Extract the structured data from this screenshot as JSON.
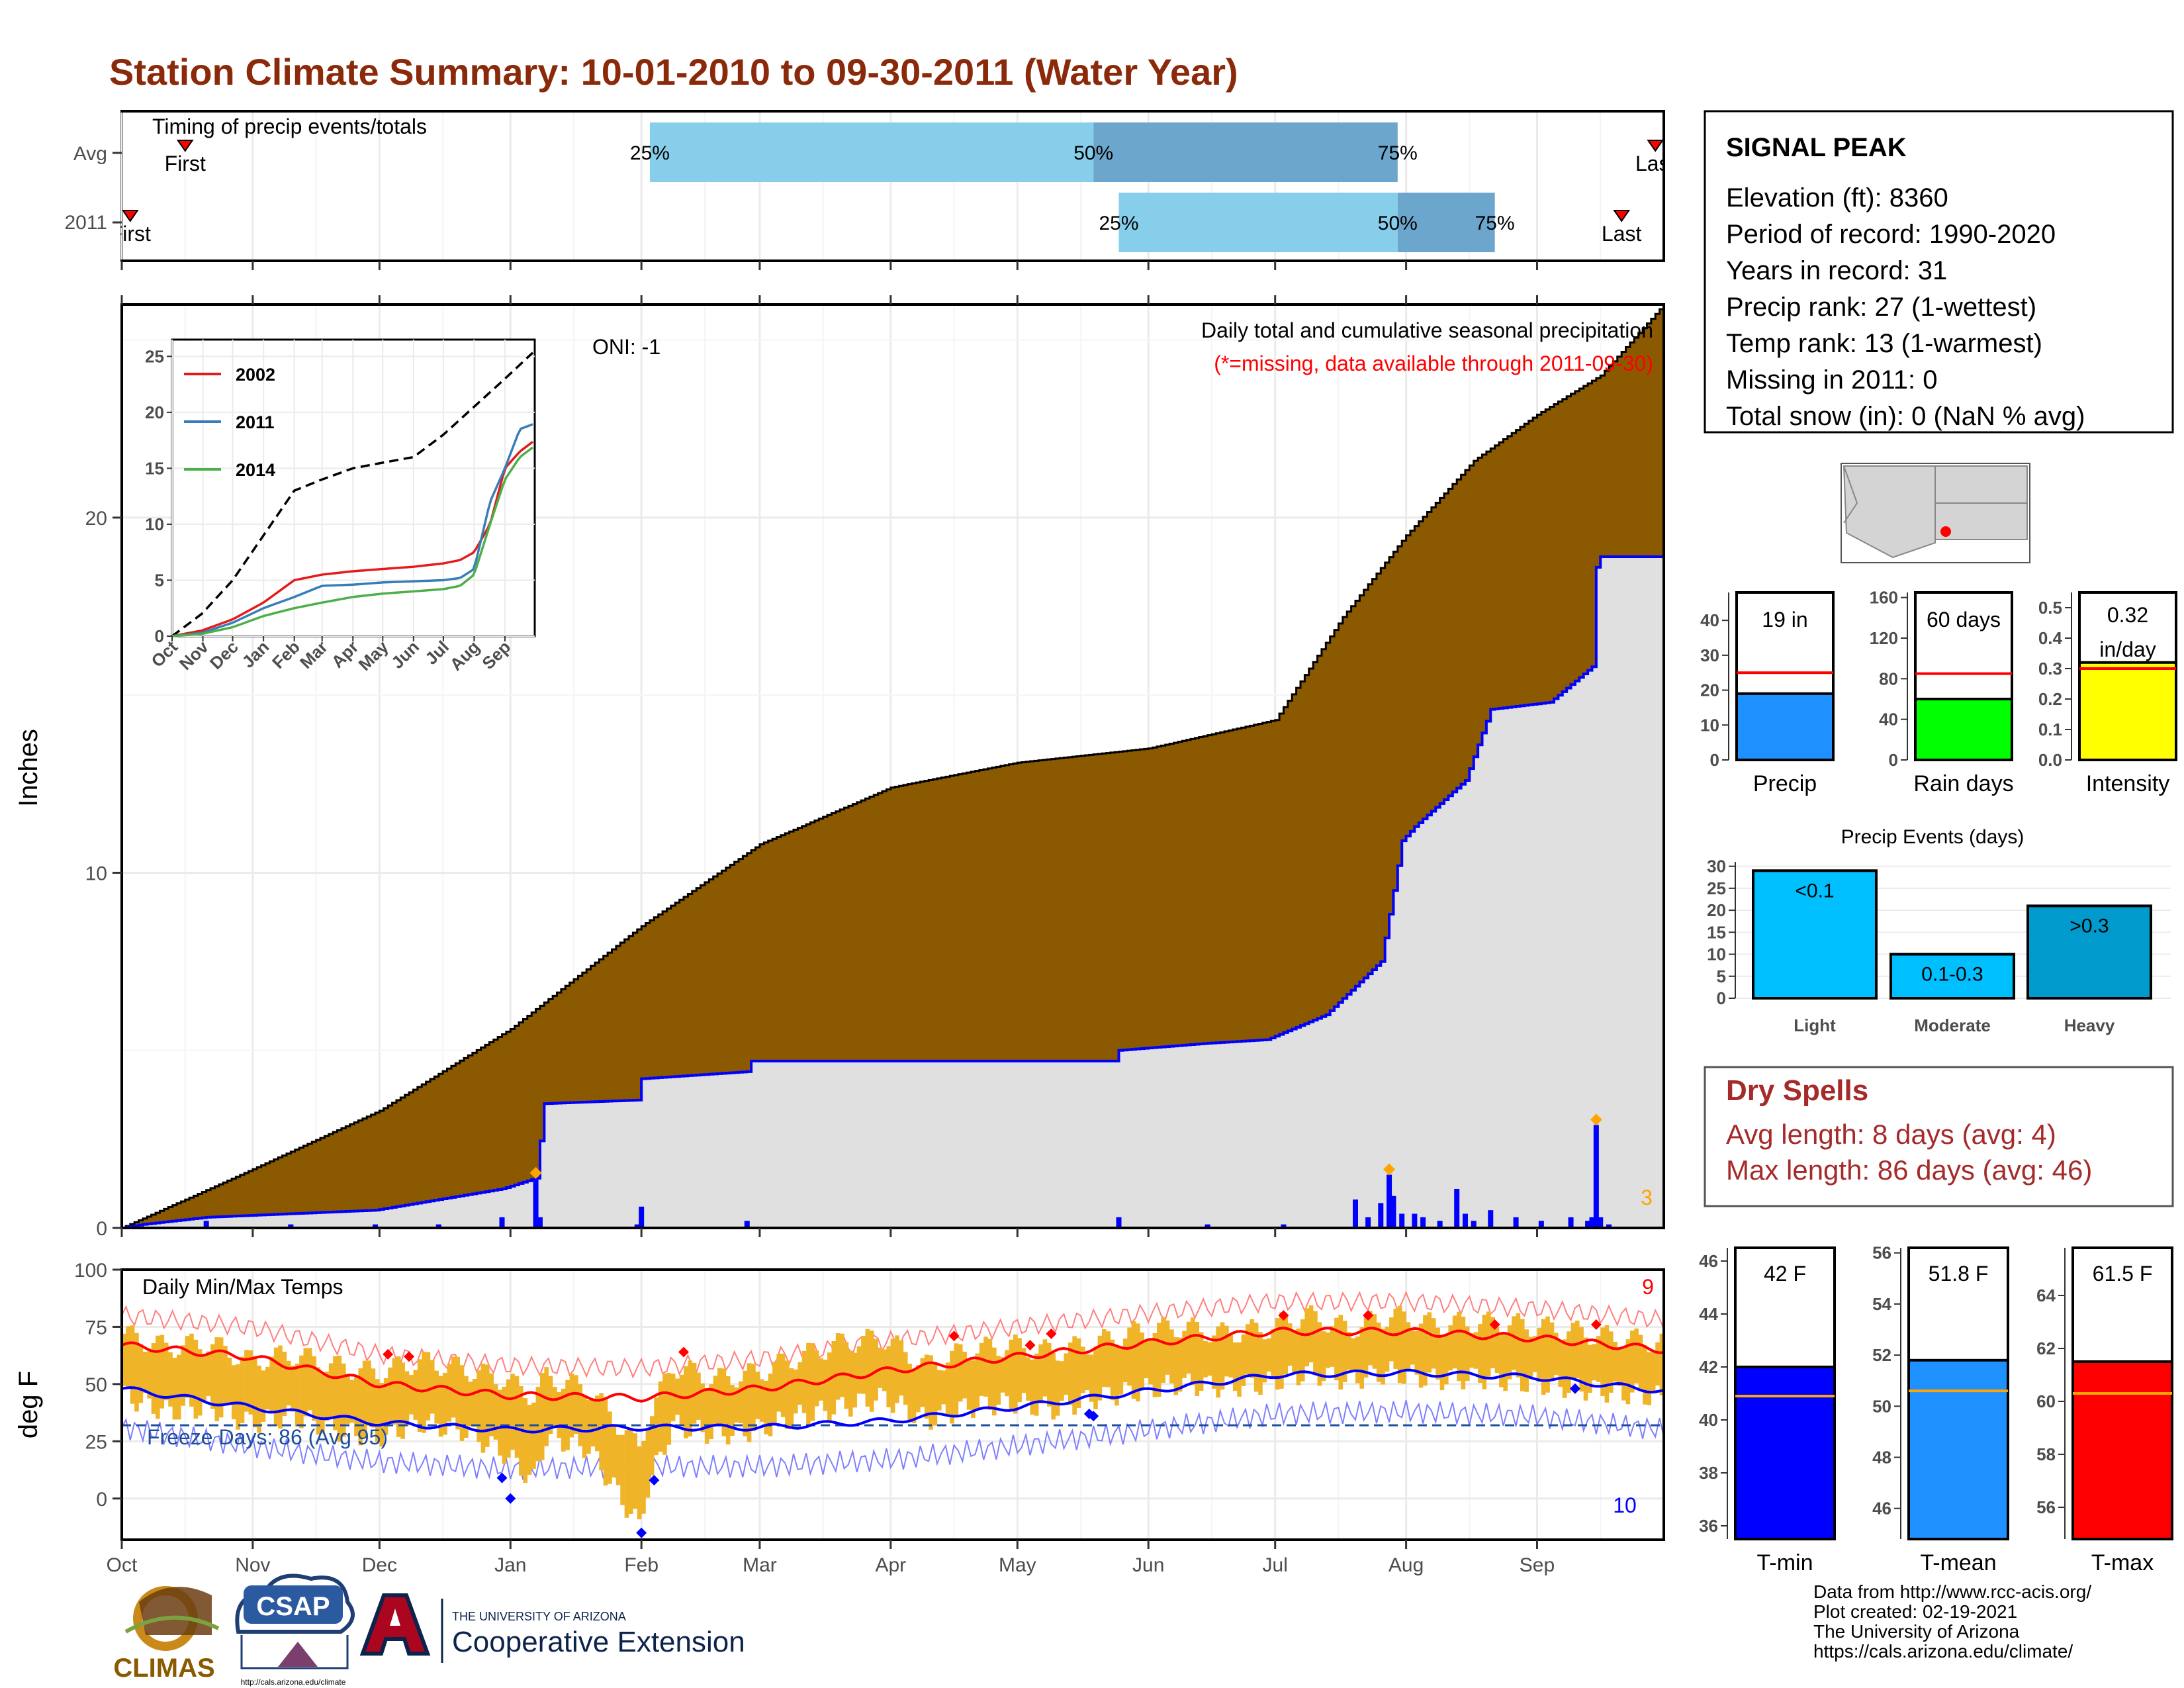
{
  "title": "Station Climate Summary: 10-01-2010 to 09-30-2011 (Water Year)",
  "timing_panel": {
    "label": "Timing of precip events/totals",
    "rows": [
      {
        "name": "Avg",
        "first_label": "First",
        "last_label": "Last",
        "p25": "25%",
        "p50": "50%",
        "p75": "75%",
        "first_day": 15,
        "last_day": 363,
        "p25_day": 125,
        "p50_day": 230,
        "p75_day": 302
      },
      {
        "name": "2011",
        "first_label": "First",
        "last_label": "Last",
        "p25": "25%",
        "p50": "50%",
        "p75": "75%",
        "first_day": 2,
        "last_day": 355,
        "p25_day": 236,
        "p50_day": 302,
        "p75_day": 325
      }
    ]
  },
  "precip_panel": {
    "ylabel": "Inches",
    "annotation_title": "Daily total and cumulative seasonal precipitation",
    "annotation_missing": "(*=missing, data available through 2011-09-30)",
    "oni": "ONI: -1",
    "count_label": "3",
    "yticks": [
      "0",
      "10",
      "20"
    ]
  },
  "inset": {
    "yticks": [
      "0",
      "5",
      "10",
      "15",
      "20",
      "25"
    ],
    "xticks": [
      "Oct",
      "Nov",
      "Dec",
      "Jan",
      "Feb",
      "Mar",
      "Apr",
      "May",
      "Jun",
      "Jul",
      "Aug",
      "Sep"
    ],
    "legend": [
      {
        "name": "2002",
        "color": "#e41a1c"
      },
      {
        "name": "2011",
        "color": "#377eb8"
      },
      {
        "name": "2014",
        "color": "#4daf4a"
      }
    ]
  },
  "temp_panel": {
    "ylabel": "deg F",
    "label": "Daily Min/Max Temps",
    "freeze_label": "Freeze Days: 86 (Avg 95)",
    "count_max": "9",
    "count_min": "10",
    "yticks": [
      "0",
      "25",
      "50",
      "75",
      "100"
    ]
  },
  "months": [
    "Oct",
    "Nov",
    "Dec",
    "Jan",
    "Feb",
    "Mar",
    "Apr",
    "May",
    "Jun",
    "Jul",
    "Aug",
    "Sep"
  ],
  "station": {
    "name": "SIGNAL PEAK",
    "lines": [
      "Elevation (ft): 8360",
      "Period of record: 1990-2020",
      "Years in record: 31",
      "Precip rank: 27 (1-wettest)",
      "Temp rank: 13 (1-warmest)",
      "Missing in 2011: 0",
      "Total snow (in): 0 (NaN % avg)"
    ]
  },
  "summary_bars": [
    {
      "name": "Precip",
      "label": "19 in",
      "color": "#1e90ff",
      "value": 19,
      "avg": 25,
      "yticks": [
        "0",
        "10",
        "20",
        "30",
        "40"
      ],
      "ymax": 48
    },
    {
      "name": "Rain days",
      "label": "60 days",
      "color": "#00ff00",
      "value": 60,
      "avg": 85,
      "yticks": [
        "0",
        "40",
        "80",
        "120",
        "160"
      ],
      "ymax": 165
    },
    {
      "name": "Intensity",
      "label_lines": [
        "0.32",
        "in/day"
      ],
      "color": "#ffff00",
      "value": 0.32,
      "avg": 0.3,
      "yticks": [
        "0.0",
        "0.1",
        "0.2",
        "0.3",
        "0.4",
        "0.5"
      ],
      "ymax": 0.55
    }
  ],
  "precip_events": {
    "title": "Precip Events (days)",
    "yticks": [
      "0",
      "5",
      "10",
      "15",
      "20",
      "25",
      "30"
    ],
    "bars": [
      {
        "name": "Light",
        "label": "<0.1",
        "value": 29,
        "color": "#00bfff"
      },
      {
        "name": "Moderate",
        "label": "0.1-0.3",
        "value": 10,
        "color": "#00bfff"
      },
      {
        "name": "Heavy",
        "label": ">0.3",
        "value": 21,
        "color": "#009acd"
      }
    ]
  },
  "dry_spells": {
    "title": "Dry Spells",
    "avg_line": "Avg length: 8 days (avg: 4)",
    "max_line": "Max length: 86 days (avg: 46)"
  },
  "temp_bars": [
    {
      "name": "T-min",
      "label": "42 F",
      "value": 42,
      "avg": 40.9,
      "color": "#0000ff",
      "yticks": [
        "36",
        "38",
        "40",
        "42",
        "44",
        "46"
      ],
      "ymin": 35.5,
      "ymax": 46.5
    },
    {
      "name": "T-mean",
      "label": "51.8 F",
      "value": 51.8,
      "avg": 50.6,
      "color": "#1e90ff",
      "yticks": [
        "46",
        "48",
        "50",
        "52",
        "54",
        "56"
      ],
      "ymin": 44.8,
      "ymax": 56.2
    },
    {
      "name": "T-max",
      "label": "61.5 F",
      "value": 61.5,
      "avg": 60.3,
      "color": "#ff0000",
      "yticks": [
        "56",
        "58",
        "60",
        "62",
        "64"
      ],
      "ymin": 54.8,
      "ymax": 65.8
    }
  ],
  "footer": {
    "lines": [
      "Data from http://www.rcc-acis.org/",
      "Plot created: 02-19-2021",
      "The University of Arizona",
      "https://cals.arizona.edu/climate/"
    ]
  },
  "logos": {
    "climas": "CLIMAS",
    "csap": "CSAP",
    "csap_url": "http://cals.arizona.edu/climate",
    "ua_top": "THE UNIVERSITY OF ARIZONA",
    "ua_bottom": "Cooperative Extension"
  },
  "chart_data": {
    "type": "area",
    "x_range_days": [
      0,
      365
    ],
    "cumulative_avg_inches": {
      "days": [
        0,
        30,
        61,
        92,
        123,
        151,
        182,
        212,
        243,
        273,
        289,
        304,
        320,
        335,
        350,
        365
      ],
      "values": [
        0,
        1.6,
        3.3,
        5.6,
        8.5,
        10.8,
        12.4,
        13.1,
        13.5,
        14.3,
        17.2,
        19.5,
        21.6,
        22.9,
        24.0,
        26.0
      ]
    },
    "cumulative_2011_inches": {
      "days": [
        0,
        5,
        20,
        40,
        60,
        75,
        90,
        98,
        100,
        122,
        123,
        148,
        149,
        235,
        236,
        257,
        271,
        285,
        298,
        301,
        303,
        306,
        318,
        324,
        338,
        348,
        349,
        350,
        365
      ],
      "values": [
        0,
        0.1,
        0.3,
        0.4,
        0.5,
        0.8,
        1.1,
        1.4,
        3.5,
        3.6,
        4.2,
        4.4,
        4.7,
        4.7,
        5.0,
        5.2,
        5.3,
        6.0,
        7.5,
        9.5,
        10.9,
        11.3,
        12.6,
        14.6,
        14.8,
        15.8,
        18.6,
        18.9,
        18.9
      ]
    },
    "daily_precip_2011": {
      "days": [
        20,
        40,
        60,
        75,
        90,
        98,
        99,
        122,
        123,
        148,
        236,
        257,
        275,
        292,
        295,
        298,
        300,
        301,
        303,
        306,
        308,
        312,
        316,
        318,
        320,
        324,
        330,
        336,
        343,
        347,
        348,
        349,
        350,
        352
      ],
      "values": [
        0.2,
        0.1,
        0.1,
        0.1,
        0.3,
        1.4,
        0.3,
        0.1,
        0.6,
        0.2,
        0.3,
        0.1,
        0.1,
        0.8,
        0.3,
        0.7,
        1.5,
        0.9,
        0.4,
        0.4,
        0.3,
        0.2,
        1.1,
        0.4,
        0.2,
        0.5,
        0.3,
        0.2,
        0.3,
        0.2,
        0.3,
        2.9,
        0.3,
        0.1
      ]
    },
    "daily_temp_2011": {
      "days": [
        0,
        10,
        20,
        30,
        40,
        50,
        60,
        70,
        80,
        90,
        97,
        100,
        110,
        122,
        124,
        130,
        140,
        150,
        160,
        170,
        180,
        190,
        200,
        210,
        220,
        230,
        240,
        250,
        260,
        270,
        280,
        290,
        300,
        310,
        320,
        330,
        340,
        350,
        360,
        365
      ],
      "tmax": [
        72,
        66,
        68,
        60,
        63,
        58,
        55,
        60,
        57,
        52,
        45,
        53,
        48,
        22,
        35,
        58,
        52,
        55,
        62,
        68,
        70,
        58,
        65,
        67,
        64,
        68,
        73,
        75,
        72,
        74,
        80,
        74,
        80,
        76,
        77,
        76,
        74,
        71,
        69,
        68
      ],
      "tmin": [
        45,
        38,
        40,
        33,
        36,
        30,
        27,
        33,
        30,
        20,
        8,
        27,
        22,
        -12,
        5,
        32,
        28,
        30,
        36,
        40,
        44,
        34,
        40,
        42,
        39,
        44,
        47,
        50,
        49,
        50,
        55,
        52,
        55,
        52,
        53,
        51,
        49,
        47,
        45,
        44
      ]
    },
    "temp_avg_max": {
      "days": [
        0,
        30,
        61,
        92,
        123,
        151,
        182,
        212,
        243,
        273,
        304,
        335,
        365
      ],
      "values": [
        67,
        62,
        50,
        45,
        44,
        48,
        56,
        62,
        68,
        73,
        73,
        70,
        65
      ]
    },
    "temp_avg_min": {
      "days": [
        0,
        30,
        61,
        92,
        123,
        151,
        182,
        212,
        243,
        273,
        304,
        335,
        365
      ],
      "values": [
        48,
        40,
        33,
        30,
        31,
        31,
        34,
        40,
        47,
        54,
        55,
        53,
        47
      ]
    },
    "inset_series": [
      {
        "name": "avg",
        "days": [
          0,
          30,
          61,
          92,
          123,
          151,
          182,
          212,
          243,
          273,
          304,
          335,
          365
        ],
        "values": [
          0,
          2,
          5,
          9,
          13,
          14,
          15,
          15.5,
          16,
          18,
          20.5,
          23,
          25.5
        ]
      },
      {
        "name": "2002",
        "days": [
          0,
          30,
          61,
          92,
          123,
          151,
          182,
          212,
          243,
          273,
          290,
          304,
          320,
          335,
          350,
          365
        ],
        "values": [
          0,
          0.5,
          1.5,
          3,
          5,
          5.5,
          5.8,
          6.0,
          6.2,
          6.5,
          6.8,
          7.5,
          10,
          15,
          16.5,
          17.5
        ]
      },
      {
        "name": "2011",
        "days": [
          0,
          30,
          61,
          92,
          123,
          151,
          182,
          212,
          243,
          273,
          290,
          304,
          320,
          335,
          350,
          365
        ],
        "values": [
          0,
          0.3,
          1.2,
          2.5,
          3.5,
          4.5,
          4.6,
          4.8,
          4.9,
          5.0,
          5.2,
          6.0,
          12,
          15,
          18.5,
          19.0
        ]
      },
      {
        "name": "2014",
        "days": [
          0,
          30,
          61,
          92,
          123,
          151,
          182,
          212,
          243,
          273,
          290,
          304,
          320,
          335,
          350,
          365
        ],
        "values": [
          0,
          0.2,
          0.8,
          1.8,
          2.5,
          3.0,
          3.5,
          3.8,
          4.0,
          4.2,
          4.5,
          5.5,
          10,
          14,
          16,
          17
        ]
      }
    ],
    "temp_freeze_line": 32,
    "ylim_precip": [
      0,
      26
    ],
    "ylim_temp": [
      -18,
      100
    ]
  }
}
